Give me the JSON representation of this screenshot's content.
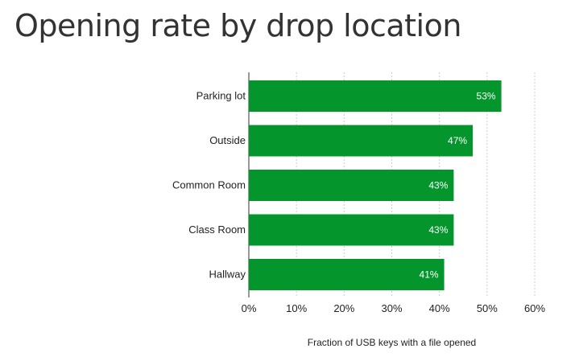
{
  "chart_data": {
    "type": "bar",
    "orientation": "horizontal",
    "title": "Opening rate by drop location",
    "categories": [
      "Parking lot",
      "Outside",
      "Common Room",
      "Class Room",
      "Hallway"
    ],
    "values": [
      53,
      47,
      43,
      43,
      41
    ],
    "data_labels": [
      "53%",
      "47%",
      "43%",
      "43%",
      "41%"
    ],
    "xlabel": "Fraction of USB keys with a file opened",
    "ylabel": "",
    "xlim": [
      0,
      60
    ],
    "x_ticks": [
      0,
      10,
      20,
      30,
      40,
      50,
      60
    ],
    "x_tick_labels": [
      "0%",
      "10%",
      "20%",
      "30%",
      "40%",
      "50%",
      "60%"
    ],
    "grid": true,
    "legend": "none",
    "bar_color": "#04962c",
    "grid_color": "#cccccc"
  }
}
